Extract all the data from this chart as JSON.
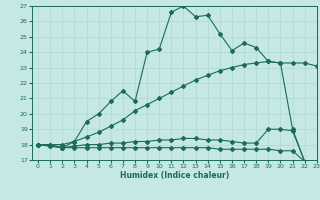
{
  "xlabel": "Humidex (Indice chaleur)",
  "bg_color": "#c5e8e4",
  "line_color": "#1a6b5a",
  "grid_color": "#b0d8d4",
  "ylim": [
    17,
    27
  ],
  "xlim": [
    -0.5,
    23
  ],
  "yticks": [
    17,
    18,
    19,
    20,
    21,
    22,
    23,
    24,
    25,
    26,
    27
  ],
  "xticks": [
    0,
    1,
    2,
    3,
    4,
    5,
    6,
    7,
    8,
    9,
    10,
    11,
    12,
    13,
    14,
    15,
    16,
    17,
    18,
    19,
    20,
    21,
    22,
    23
  ],
  "line1_x": [
    0,
    1,
    2,
    3,
    4,
    5,
    6,
    7,
    8,
    9,
    10,
    11,
    12,
    13,
    14,
    15,
    16,
    17,
    18,
    19,
    20,
    21,
    22,
    23
  ],
  "line1_y": [
    18.0,
    18.0,
    18.0,
    18.2,
    19.5,
    20.0,
    20.8,
    21.5,
    20.8,
    24.0,
    24.2,
    26.6,
    27.0,
    26.3,
    26.4,
    25.2,
    24.1,
    24.6,
    24.3,
    23.4,
    23.3,
    19.0,
    16.9,
    16.8
  ],
  "line2_x": [
    0,
    1,
    2,
    3,
    4,
    5,
    6,
    7,
    8,
    9,
    10,
    11,
    12,
    13,
    14,
    15,
    16,
    17,
    18,
    19,
    20,
    21,
    22,
    23
  ],
  "line2_y": [
    18.0,
    18.0,
    17.8,
    18.2,
    18.5,
    18.8,
    19.2,
    19.6,
    20.2,
    20.6,
    21.0,
    21.4,
    21.8,
    22.2,
    22.5,
    22.8,
    23.0,
    23.2,
    23.3,
    23.4,
    23.3,
    23.3,
    23.3,
    23.1
  ],
  "line3_x": [
    0,
    1,
    2,
    3,
    4,
    5,
    6,
    7,
    8,
    9,
    10,
    11,
    12,
    13,
    14,
    15,
    16,
    17,
    18,
    19,
    20,
    21,
    22,
    23
  ],
  "line3_y": [
    18.0,
    17.9,
    17.8,
    17.9,
    18.0,
    18.0,
    18.1,
    18.1,
    18.2,
    18.2,
    18.3,
    18.3,
    18.4,
    18.4,
    18.3,
    18.3,
    18.2,
    18.1,
    18.1,
    19.0,
    19.0,
    18.9,
    16.9,
    16.8
  ],
  "line4_x": [
    0,
    1,
    2,
    3,
    4,
    5,
    6,
    7,
    8,
    9,
    10,
    11,
    12,
    13,
    14,
    15,
    16,
    17,
    18,
    19,
    20,
    21,
    22,
    23
  ],
  "line4_y": [
    18.0,
    17.9,
    17.8,
    17.8,
    17.8,
    17.8,
    17.8,
    17.8,
    17.8,
    17.8,
    17.8,
    17.8,
    17.8,
    17.8,
    17.8,
    17.7,
    17.7,
    17.7,
    17.7,
    17.7,
    17.6,
    17.6,
    16.9,
    16.8
  ]
}
